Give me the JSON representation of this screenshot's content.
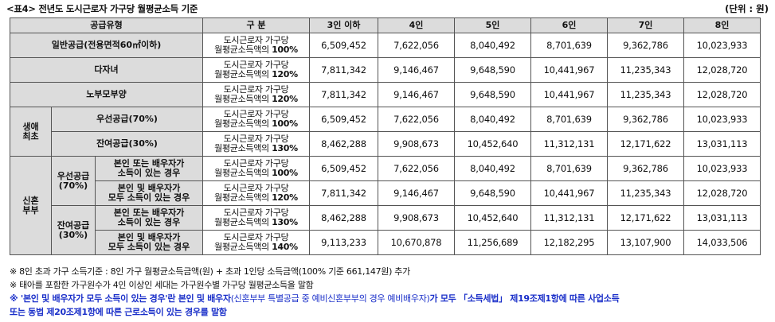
{
  "title": "<표4> 전년도 도시근로자 가구당 월평균소득 기준",
  "unit": "(단위 : 원)",
  "headers": [
    "공급유형",
    "구    분",
    "3인 이하",
    "4인",
    "5인",
    "6인",
    "7인",
    "8인"
  ],
  "basis_prefix": "도시근로자 가구당",
  "basis_mid": "월평균소득액의",
  "groups": {
    "saengae": "생애\n최초",
    "sinhon": "신혼\n부부",
    "priority70": "우선공급\n(70%)",
    "remaining30": "잔여공급\n(30%)"
  },
  "rows": [
    {
      "type": "일반공급(전용면적60㎡이하)",
      "pct": "100%",
      "values": [
        "6,509,452",
        "7,622,056",
        "8,040,492",
        "8,701,639",
        "9,362,786",
        "10,023,933"
      ]
    },
    {
      "type": "다자녀",
      "pct": "120%",
      "values": [
        "7,811,342",
        "9,146,467",
        "9,648,590",
        "10,441,967",
        "11,235,343",
        "12,028,720"
      ]
    },
    {
      "type": "노부모부양",
      "pct": "120%",
      "values": [
        "7,811,342",
        "9,146,467",
        "9,648,590",
        "10,441,967",
        "11,235,343",
        "12,028,720"
      ]
    },
    {
      "type": "우선공급(70%)",
      "pct": "100%",
      "values": [
        "6,509,452",
        "7,622,056",
        "8,040,492",
        "8,701,639",
        "9,362,786",
        "10,023,933"
      ]
    },
    {
      "type": "잔여공급(30%)",
      "pct": "130%",
      "values": [
        "8,462,288",
        "9,908,673",
        "10,452,640",
        "11,312,131",
        "12,171,622",
        "13,031,113"
      ]
    },
    {
      "type": "본인 또는 배우자가\n소득이 있는 경우",
      "pct": "100%",
      "values": [
        "6,509,452",
        "7,622,056",
        "8,040,492",
        "8,701,639",
        "9,362,786",
        "10,023,933"
      ]
    },
    {
      "type": "본인 및 배우자가\n모두 소득이 있는 경우",
      "pct": "120%",
      "values": [
        "7,811,342",
        "9,146,467",
        "9,648,590",
        "10,441,967",
        "11,235,343",
        "12,028,720"
      ]
    },
    {
      "type": "본인 또는 배우자가\n소득이 있는 경우",
      "pct": "130%",
      "values": [
        "8,462,288",
        "9,908,673",
        "10,452,640",
        "11,312,131",
        "12,171,622",
        "13,031,113"
      ]
    },
    {
      "type": "본인 및 배우자가\n모두 소득이 있는 경우",
      "pct": "140%",
      "values": [
        "9,113,233",
        "10,670,878",
        "11,256,689",
        "12,182,295",
        "13,107,900",
        "14,033,506"
      ]
    }
  ],
  "notes": {
    "n1": "※ 8인 초과 가구 소득기준 : 8인 가구 월평균소득금액(원) + 초과 1인당 소득금액(100% 기준 661,147원) 추가",
    "n2": "※ 태아를 포함한 가구원수가 4인 이상인 세대는 가구원수별 가구당 월평균소득을 말함",
    "n3_a": "※ '본인 및 배우자가 모두 소득이 있는 경우'란 본인 및 배우자",
    "n3_b": "(신혼부부 특별공급 중 예비신혼부부의 경우 예비배우자)",
    "n3_c": "가 모두 「소득세법」 제19조제1항에 따른 사업소득",
    "n3_d": "또는 동법 제20조제1항에 따른 근로소득이 있는 경우를 말함"
  }
}
